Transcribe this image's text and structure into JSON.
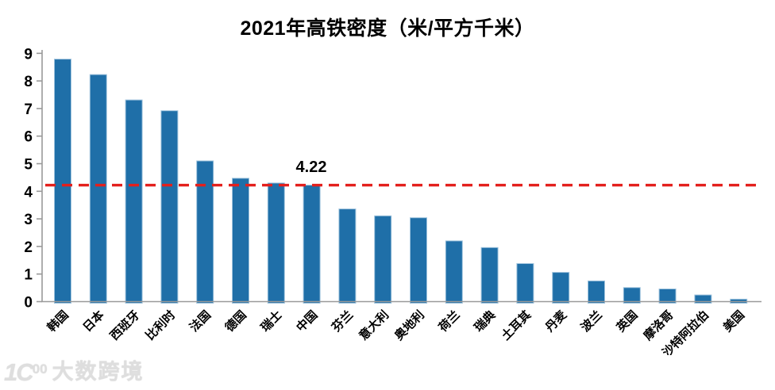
{
  "chart_data": {
    "type": "bar",
    "title": "2021年高铁密度（米/平方千米）",
    "categories": [
      "韩国",
      "日本",
      "西班牙",
      "比利时",
      "法国",
      "德国",
      "瑞士",
      "中国",
      "芬兰",
      "意大利",
      "奥地利",
      "荷兰",
      "瑞典",
      "土耳其",
      "丹麦",
      "波兰",
      "英国",
      "摩洛哥",
      "沙特阿拉伯",
      "美国"
    ],
    "values": [
      8.79,
      8.23,
      7.31,
      6.92,
      5.1,
      4.47,
      4.3,
      4.22,
      3.36,
      3.11,
      3.04,
      2.2,
      1.96,
      1.38,
      1.06,
      0.75,
      0.51,
      0.46,
      0.24,
      0.09
    ],
    "ylim": [
      0,
      9
    ],
    "yticks": [
      0,
      1,
      2,
      3,
      4,
      5,
      6,
      7,
      8,
      9
    ],
    "xlabel": "",
    "ylabel": "",
    "grid": false,
    "legend": "none",
    "bar_color": "#1f6fa8",
    "bar_border_color": "#9ec3dd",
    "axis_color": "#9a9a9a",
    "tick_label_color": "#000000",
    "reference_line": {
      "value": 4.22,
      "label": "4.22",
      "color": "#e3201d",
      "style": "dashed"
    }
  },
  "watermark": {
    "logo_main": "1C",
    "logo_sup": "00",
    "text": "大数跨境"
  }
}
